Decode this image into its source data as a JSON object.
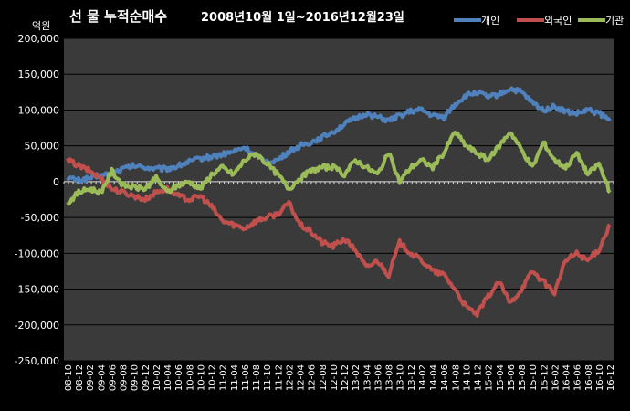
{
  "chart_data": {
    "type": "line",
    "title": "선 물 누적순매수",
    "subtitle": "2008년10월 1일~2016년12월23일",
    "ylabel": "억원",
    "ylim": [
      -250000,
      200000
    ],
    "yticks": [
      200000,
      150000,
      100000,
      50000,
      0,
      -50000,
      -100000,
      -150000,
      -200000,
      -250000
    ],
    "ytick_labels": [
      "200,000",
      "150,000",
      "100,000",
      "50,000",
      "0",
      "-50,000",
      "-100,000",
      "-150,000",
      "-200,000",
      "-250,000"
    ],
    "categories": [
      "08-10",
      "08-12",
      "09-02",
      "09-04",
      "09-06",
      "09-08",
      "09-10",
      "09-12",
      "10-02",
      "10-04",
      "10-06",
      "10-08",
      "10-10",
      "10-12",
      "11-02",
      "11-04",
      "11-06",
      "11-08",
      "11-10",
      "11-12",
      "12-02",
      "12-04",
      "12-06",
      "12-08",
      "12-10",
      "12-12",
      "13-02",
      "13-04",
      "13-06",
      "13-08",
      "13-10",
      "13-12",
      "14-02",
      "14-04",
      "14-06",
      "14-08",
      "14-10",
      "14-12",
      "15-02",
      "15-04",
      "15-06",
      "15-08",
      "15-10",
      "15-12",
      "16-02",
      "16-04",
      "16-06",
      "16-08",
      "16-10",
      "16-12"
    ],
    "legend_position": "top-right",
    "grid": true,
    "series": [
      {
        "name": "개인",
        "color": "#4f81bd",
        "values": [
          5000,
          2000,
          5000,
          8000,
          12000,
          18000,
          22000,
          20000,
          18000,
          18000,
          22000,
          28000,
          32000,
          35000,
          38000,
          42000,
          48000,
          35000,
          28000,
          30000,
          42000,
          50000,
          55000,
          62000,
          70000,
          80000,
          88000,
          95000,
          90000,
          85000,
          92000,
          98000,
          100000,
          92000,
          90000,
          108000,
          120000,
          125000,
          118000,
          122000,
          130000,
          125000,
          110000,
          100000,
          105000,
          98000,
          95000,
          100000,
          96000,
          85000
        ]
      },
      {
        "name": "외국인",
        "color": "#c0504d",
        "values": [
          30000,
          22000,
          15000,
          5000,
          -10000,
          -15000,
          -20000,
          -25000,
          -15000,
          -10000,
          -20000,
          -25000,
          -20000,
          -35000,
          -55000,
          -60000,
          -65000,
          -55000,
          -50000,
          -45000,
          -30000,
          -60000,
          -70000,
          -85000,
          -90000,
          -80000,
          -95000,
          -120000,
          -110000,
          -130000,
          -85000,
          -100000,
          -110000,
          -125000,
          -130000,
          -150000,
          -175000,
          -185000,
          -160000,
          -140000,
          -170000,
          -150000,
          -125000,
          -140000,
          -155000,
          -110000,
          -100000,
          -110000,
          -95000,
          -60000
        ]
      },
      {
        "name": "기관",
        "color": "#9bbb59",
        "values": [
          -30000,
          -15000,
          -10000,
          -15000,
          15000,
          -5000,
          -8000,
          -10000,
          5000,
          -15000,
          -5000,
          0,
          -10000,
          10000,
          20000,
          10000,
          30000,
          40000,
          25000,
          10000,
          -10000,
          5000,
          15000,
          20000,
          20000,
          10000,
          30000,
          20000,
          10000,
          40000,
          0,
          20000,
          30000,
          20000,
          40000,
          70000,
          50000,
          40000,
          30000,
          50000,
          70000,
          45000,
          20000,
          55000,
          30000,
          20000,
          40000,
          10000,
          25000,
          -15000
        ]
      }
    ]
  }
}
